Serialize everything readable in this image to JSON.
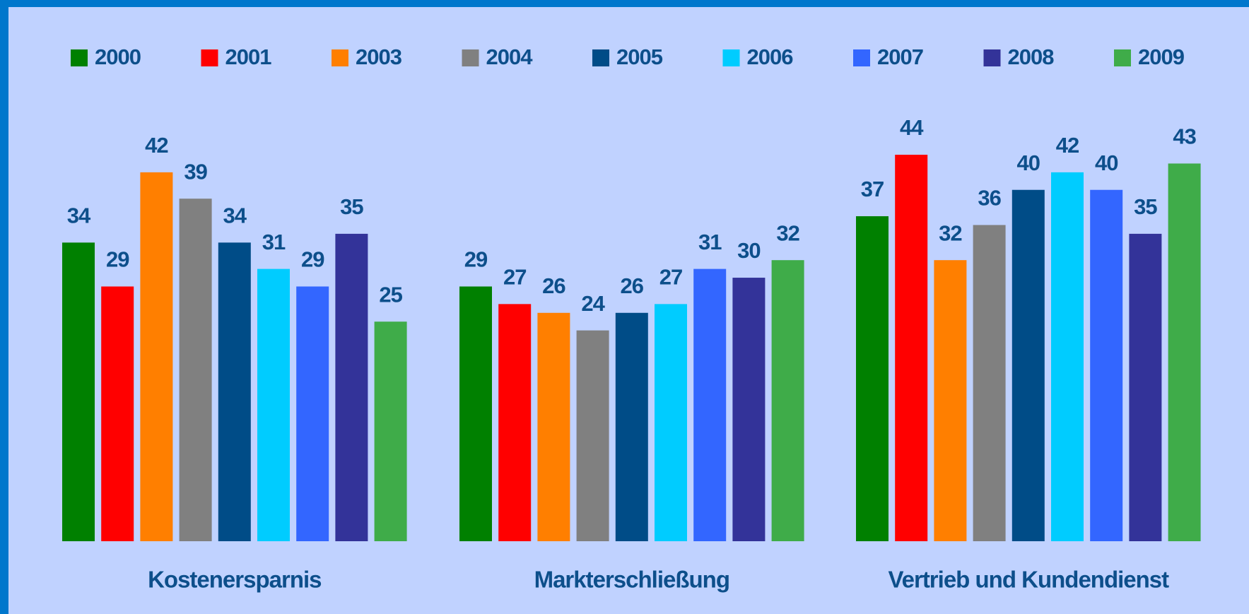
{
  "chart_data": {
    "type": "bar",
    "categories": [
      "Kostenersparnis",
      "Markterschließung",
      "Vertrieb und Kundendienst"
    ],
    "series": [
      {
        "name": "2000",
        "color": "#008000",
        "values": [
          34,
          29,
          37
        ]
      },
      {
        "name": "2001",
        "color": "#ff0000",
        "values": [
          29,
          27,
          44
        ]
      },
      {
        "name": "2003",
        "color": "#ff7f00",
        "values": [
          42,
          26,
          32
        ]
      },
      {
        "name": "2004",
        "color": "#808080",
        "values": [
          39,
          24,
          36
        ]
      },
      {
        "name": "2005",
        "color": "#004c87",
        "values": [
          34,
          26,
          40
        ]
      },
      {
        "name": "2006",
        "color": "#00ccff",
        "values": [
          31,
          27,
          42
        ]
      },
      {
        "name": "2007",
        "color": "#3366ff",
        "values": [
          29,
          31,
          40
        ]
      },
      {
        "name": "2008",
        "color": "#333399",
        "values": [
          35,
          30,
          35
        ]
      },
      {
        "name": "2009",
        "color": "#3fac49",
        "values": [
          25,
          32,
          43
        ]
      }
    ],
    "legend": "top"
  }
}
